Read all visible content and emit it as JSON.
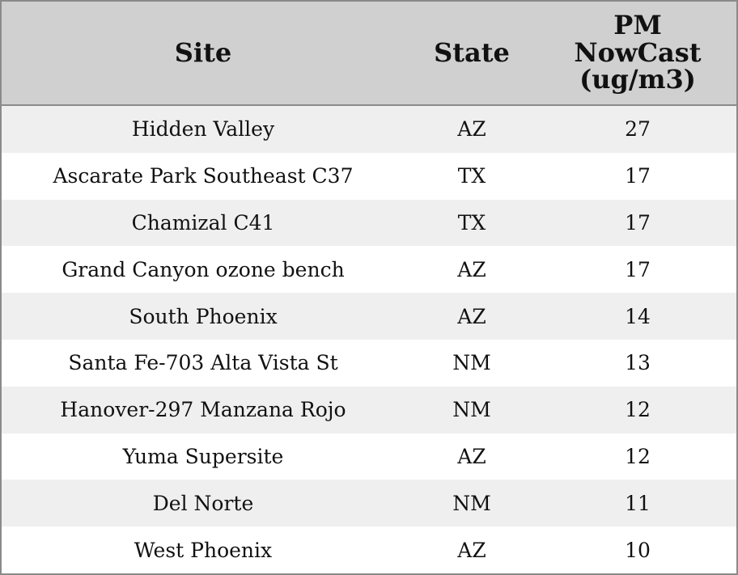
{
  "table": {
    "header": [
      "Site",
      "State",
      "PM NowCast (ug/m3)"
    ],
    "rows": [
      [
        "Hidden Valley",
        "AZ",
        27
      ],
      [
        "Ascarate Park Southeast C37",
        "TX",
        17
      ],
      [
        "Chamizal C41",
        "TX",
        17
      ],
      [
        "Grand Canyon ozone bench",
        "AZ",
        17
      ],
      [
        "South Phoenix",
        "AZ",
        14
      ],
      [
        "Santa Fe-703 Alta Vista St",
        "NM",
        13
      ],
      [
        "Hanover-297 Manzana Rojo",
        "NM",
        12
      ],
      [
        "Yuma Supersite",
        "AZ",
        12
      ],
      [
        "Del Norte",
        "NM",
        11
      ],
      [
        "West Phoenix",
        "AZ",
        10
      ]
    ]
  }
}
